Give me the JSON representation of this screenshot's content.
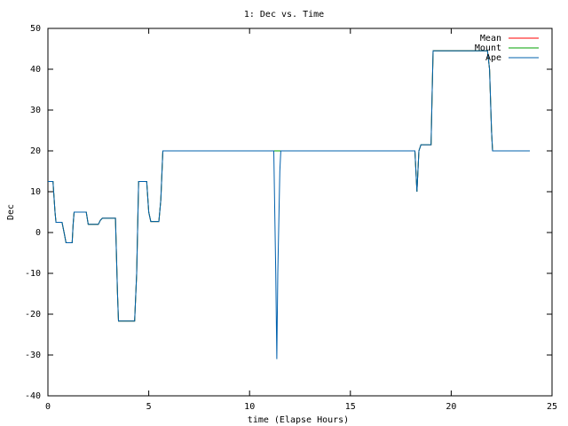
{
  "chart_data": {
    "type": "line",
    "title": "1: Dec vs. Time",
    "x_label": "time (Elapse Hours)",
    "y_label": "Dec",
    "x": [
      0,
      0.25,
      0.35,
      0.4,
      0.7,
      0.8,
      0.9,
      1.2,
      1.25,
      1.3,
      1.9,
      2.0,
      2.5,
      2.6,
      2.7,
      3.35,
      3.45,
      3.5,
      4.3,
      4.4,
      4.5,
      4.9,
      5.0,
      5.1,
      5.5,
      5.6,
      5.7,
      11.2,
      11.3,
      11.35,
      11.4,
      11.5,
      11.55,
      18.2,
      18.3,
      18.4,
      18.5,
      19.0,
      19.05,
      19.1,
      21.8,
      21.9,
      22.0,
      22.05,
      23.9
    ],
    "series": [
      {
        "name": "Mean",
        "color": "#ff0000",
        "values": [
          12.5,
          12.5,
          5,
          2.5,
          2.5,
          0,
          -2.5,
          -2.5,
          2,
          5,
          5,
          2,
          2,
          3,
          3.5,
          3.5,
          -15,
          -21.7,
          -21.7,
          -10,
          12.5,
          12.5,
          5,
          2.7,
          2.7,
          8,
          20,
          20,
          20,
          20,
          20,
          20,
          20,
          20,
          10,
          20,
          21.5,
          21.5,
          33,
          44.5,
          44.5,
          40,
          25,
          20,
          20
        ]
      },
      {
        "name": "Mount",
        "color": "#00a000",
        "values": [
          12.5,
          12.5,
          5,
          2.5,
          2.5,
          0,
          -2.5,
          -2.5,
          2,
          5,
          5,
          2,
          2,
          3,
          3.5,
          3.5,
          -15,
          -21.7,
          -21.7,
          -10,
          12.5,
          12.5,
          5,
          2.7,
          2.7,
          8,
          20,
          20,
          20,
          20,
          20,
          20,
          20,
          20,
          10,
          20,
          21.5,
          21.5,
          33,
          44.5,
          44.5,
          40,
          25,
          20,
          20
        ]
      },
      {
        "name": "Ape",
        "color": "#0060ad",
        "values": [
          12.5,
          12.5,
          5,
          2.5,
          2.5,
          0,
          -2.5,
          -2.5,
          2,
          5,
          5,
          2,
          2,
          3,
          3.5,
          3.5,
          -15,
          -21.7,
          -21.7,
          -10,
          12.5,
          12.5,
          5,
          2.7,
          2.7,
          8,
          20,
          20,
          -10,
          -31,
          -10,
          15,
          20,
          20,
          10,
          20,
          21.5,
          21.5,
          33,
          44.5,
          44.5,
          40,
          25,
          20,
          20
        ]
      }
    ],
    "xlim": [
      0,
      25
    ],
    "xticks": [
      0,
      5,
      10,
      15,
      20,
      25
    ],
    "ylim": [
      -40,
      50
    ],
    "yticks": [
      -40,
      -30,
      -20,
      -10,
      0,
      10,
      20,
      30,
      40,
      50
    ],
    "grid": false,
    "legend": "top-right"
  }
}
